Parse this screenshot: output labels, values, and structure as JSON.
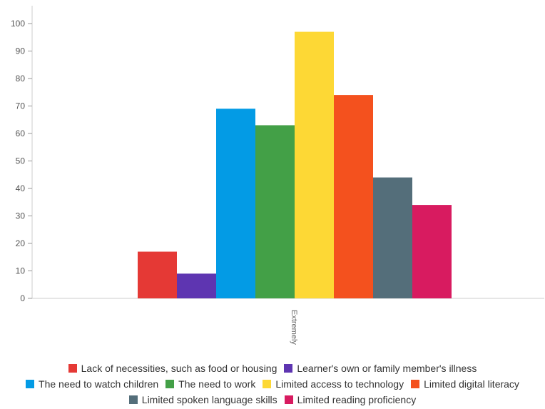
{
  "chart_data": {
    "type": "bar",
    "categories": [
      "Extremely"
    ],
    "yticks": [
      0,
      10,
      20,
      30,
      40,
      50,
      60,
      70,
      80,
      90,
      100
    ],
    "ylim": [
      0,
      100
    ],
    "grid": false,
    "legend_position": "bottom",
    "series": [
      {
        "name": "Lack of necessities, such as food or housing",
        "values": [
          17
        ],
        "color": "#e53935"
      },
      {
        "name": "Learner's own or family member's illness",
        "values": [
          9
        ],
        "color": "#5e35b1"
      },
      {
        "name": "The need to watch children",
        "values": [
          69
        ],
        "color": "#039be5"
      },
      {
        "name": "The need to work",
        "values": [
          63
        ],
        "color": "#43a047"
      },
      {
        "name": "Limited access to technology",
        "values": [
          97
        ],
        "color": "#fdd835"
      },
      {
        "name": "Limited digital literacy",
        "values": [
          74
        ],
        "color": "#f4511e"
      },
      {
        "name": "Limited spoken language skills",
        "values": [
          44
        ],
        "color": "#546e7a"
      },
      {
        "name": "Limited reading proficiency",
        "values": [
          34
        ],
        "color": "#d81b60"
      }
    ]
  }
}
